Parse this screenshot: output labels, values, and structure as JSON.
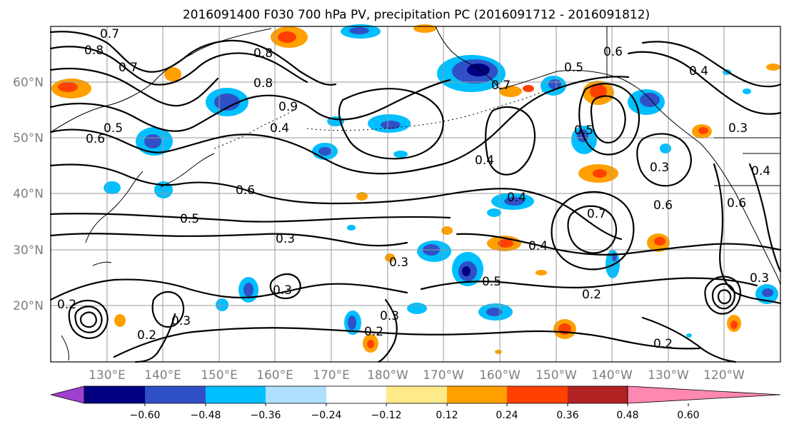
{
  "title": "2016091400 F030 700 hPa PV, precipitation PC (2016091712 - 2016091812)",
  "latitude_labels": [
    "60°N",
    "50°N",
    "40°N",
    "30°N",
    "20°N"
  ],
  "longitude_labels": [
    "130°E",
    "140°E",
    "150°E",
    "160°E",
    "170°E",
    "180°W",
    "170°W",
    "160°W",
    "150°W",
    "140°W",
    "130°W",
    "120°W"
  ],
  "colorbar": {
    "colors": [
      "#a040d0",
      "#000080",
      "#3050c8",
      "#00bfff",
      "#b0e0ff",
      "#ffffff",
      "#ffea8a",
      "#ffa000",
      "#ff4000",
      "#b22222",
      "#ff88b0"
    ],
    "tick_labels": [
      "−0.60",
      "−0.48",
      "−0.36",
      "−0.24",
      "−0.12",
      "0.12",
      "0.24",
      "0.36",
      "0.48",
      "0.60"
    ]
  },
  "contour_labels": [
    "0.7",
    "0.8",
    "0.7",
    "0.8",
    "0.6",
    "0.5",
    "0.4",
    "0.9",
    "0.4",
    "0.6",
    "0.5",
    "0.4",
    "0.3",
    "0.6",
    "0.5",
    "0.3",
    "0.4",
    "0.6",
    "0.3",
    "0.4",
    "0.7",
    "0.6",
    "0.4",
    "0.3",
    "0.2",
    "0.3",
    "0.2",
    "0.2",
    "0.3",
    "0.3",
    "0.2",
    "0.2",
    "0.3",
    "0.5",
    "0.7",
    "0.8",
    "0.5"
  ]
}
